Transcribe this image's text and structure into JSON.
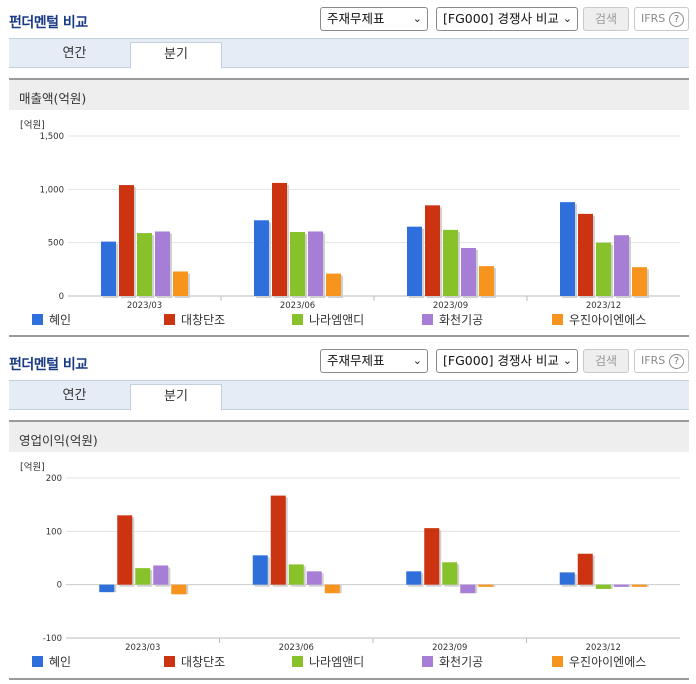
{
  "panels": [
    {
      "title": "펀더멘털 비교",
      "select_main": "주재무제표",
      "select_compare": "[FG000] 경쟁사 비교",
      "search_label": "검색",
      "ifrs_label": "IFRS",
      "help_glyph": "?",
      "tabs": [
        {
          "label": "연간",
          "active": false
        },
        {
          "label": "분기",
          "active": true
        }
      ],
      "section_title": "매출액(억원)",
      "chart_unit": "[억원]"
    },
    {
      "title": "펀더멘털 비교",
      "select_main": "주재무제표",
      "select_compare": "[FG000] 경쟁사 비교",
      "search_label": "검색",
      "ifrs_label": "IFRS",
      "help_glyph": "?",
      "tabs": [
        {
          "label": "연간",
          "active": false
        },
        {
          "label": "분기",
          "active": true
        }
      ],
      "section_title": "영업이익(억원)",
      "chart_unit": "[억원]"
    }
  ],
  "legend": [
    {
      "name": "혜인",
      "color": "#2f6fdc"
    },
    {
      "name": "대창단조",
      "color": "#cc3311"
    },
    {
      "name": "나라엠앤디",
      "color": "#88c22a"
    },
    {
      "name": "화천기공",
      "color": "#a77ed6"
    },
    {
      "name": "우진아이엔에스",
      "color": "#f7941d"
    }
  ],
  "chart_data": [
    {
      "type": "bar",
      "title": "매출액(억원)",
      "ylabel": "[억원]",
      "categories": [
        "2023/03",
        "2023/06",
        "2023/09",
        "2023/12"
      ],
      "ylim": [
        0,
        1500
      ],
      "yticks": [
        0,
        500,
        1000,
        1500
      ],
      "ytick_labels": [
        "0",
        "500",
        "1,000",
        "1,500"
      ],
      "series": [
        {
          "name": "혜인",
          "values": [
            510,
            710,
            650,
            880
          ]
        },
        {
          "name": "대창단조",
          "values": [
            1040,
            1060,
            850,
            770
          ]
        },
        {
          "name": "나라엠앤디",
          "values": [
            590,
            600,
            620,
            500
          ]
        },
        {
          "name": "화천기공",
          "values": [
            605,
            605,
            450,
            570
          ]
        },
        {
          "name": "우진아이엔에스",
          "values": [
            230,
            210,
            280,
            270
          ]
        }
      ]
    },
    {
      "type": "bar",
      "title": "영업이익(억원)",
      "ylabel": "[억원]",
      "categories": [
        "2023/03",
        "2023/06",
        "2023/09",
        "2023/12"
      ],
      "ylim": [
        -100,
        200
      ],
      "yticks": [
        -100,
        0,
        100,
        200
      ],
      "ytick_labels": [
        "-100",
        "0",
        "100",
        "200"
      ],
      "series": [
        {
          "name": "혜인",
          "values": [
            -14,
            55,
            25,
            23
          ]
        },
        {
          "name": "대창단조",
          "values": [
            130,
            167,
            106,
            58
          ]
        },
        {
          "name": "나라엠앤디",
          "values": [
            31,
            38,
            42,
            -8
          ]
        },
        {
          "name": "화천기공",
          "values": [
            36,
            25,
            -16,
            -4
          ]
        },
        {
          "name": "우진아이엔에스",
          "values": [
            -18,
            -16,
            -4,
            -4
          ]
        }
      ]
    }
  ]
}
